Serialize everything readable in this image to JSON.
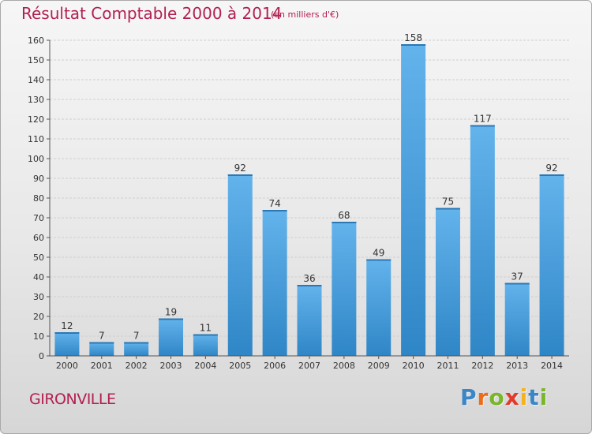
{
  "chart_data": {
    "type": "bar",
    "title": "Résultat Comptable 2000 à 2014",
    "subtitle": "(en milliers d'€)",
    "categories": [
      "2000",
      "2001",
      "2002",
      "2003",
      "2004",
      "2005",
      "2006",
      "2007",
      "2008",
      "2009",
      "2010",
      "2011",
      "2012",
      "2013",
      "2014"
    ],
    "values": [
      12,
      7,
      7,
      19,
      11,
      92,
      74,
      36,
      68,
      49,
      158,
      75,
      117,
      37,
      92
    ],
    "ylim": [
      0,
      160
    ],
    "yticks": [
      0,
      10,
      20,
      30,
      40,
      50,
      60,
      70,
      80,
      90,
      100,
      110,
      120,
      130,
      140,
      150,
      160
    ],
    "grid": true,
    "legend": "none",
    "bar_color": "#4a9fdc"
  },
  "footer": {
    "city": "GIRONVILLE",
    "logo_parts": [
      "P",
      "r",
      "o",
      "x",
      "i",
      "t",
      "i"
    ]
  }
}
